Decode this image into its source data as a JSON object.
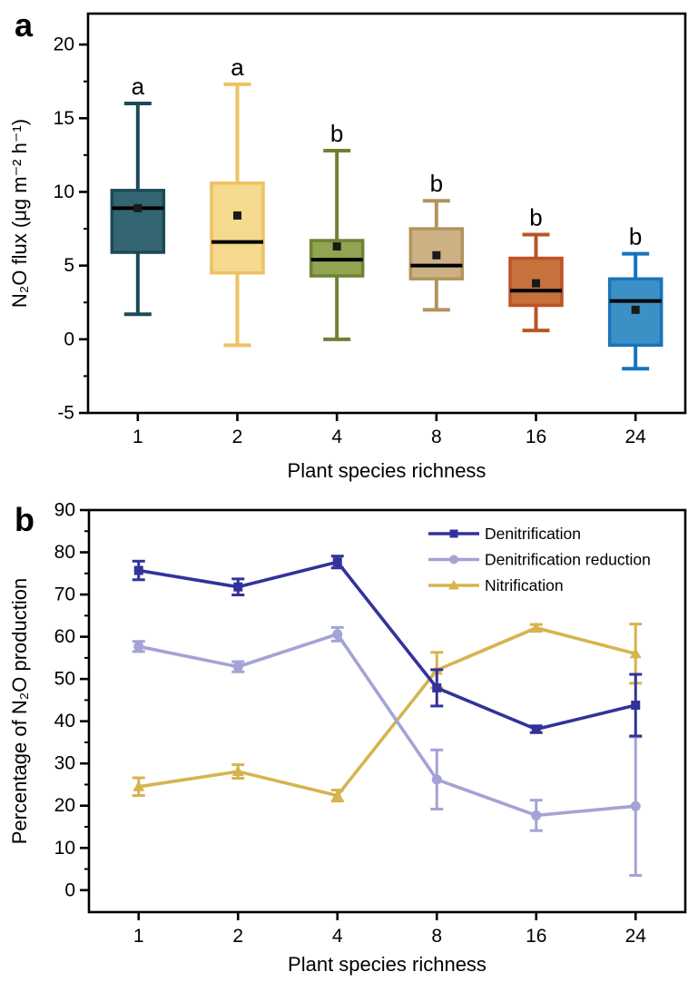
{
  "chart_data": [
    {
      "id": "a",
      "type": "box",
      "panel_label": "a",
      "xlabel": "Plant species richness",
      "ylabel": "N₂O flux (μg m⁻² h⁻¹)",
      "categories": [
        "1",
        "2",
        "4",
        "8",
        "16",
        "24"
      ],
      "ylim": [
        -5,
        22.1
      ],
      "yticks": [
        -5,
        0,
        5,
        10,
        15,
        20
      ],
      "minor_tick_step": 2.5,
      "grid": false,
      "boxes": [
        {
          "category": "1",
          "whisker_low": 1.7,
          "q1": 5.9,
          "median": 8.9,
          "mean": 8.9,
          "q3": 10.1,
          "whisker_high": 16.0,
          "sig_letter": "a",
          "fill": "#336672",
          "stroke": "#1D4A57"
        },
        {
          "category": "2",
          "whisker_low": -0.4,
          "q1": 4.5,
          "median": 6.6,
          "mean": 8.4,
          "q3": 10.6,
          "whisker_high": 17.3,
          "sig_letter": "a",
          "fill": "#F4D98E",
          "stroke": "#EDC25F"
        },
        {
          "category": "4",
          "whisker_low": 0.0,
          "q1": 4.3,
          "median": 5.4,
          "mean": 6.3,
          "q3": 6.7,
          "whisker_high": 12.8,
          "sig_letter": "b",
          "fill": "#90A452",
          "stroke": "#6F8134"
        },
        {
          "category": "8",
          "whisker_low": 2.0,
          "q1": 4.1,
          "median": 5.0,
          "mean": 5.7,
          "q3": 7.5,
          "whisker_high": 9.4,
          "sig_letter": "b",
          "fill": "#CCB184",
          "stroke": "#B2945D"
        },
        {
          "category": "16",
          "whisker_low": 0.6,
          "q1": 2.3,
          "median": 3.3,
          "mean": 3.8,
          "q3": 5.5,
          "whisker_high": 7.1,
          "sig_letter": "b",
          "fill": "#C7713D",
          "stroke": "#BC5327"
        },
        {
          "category": "24",
          "whisker_low": -2.0,
          "q1": -0.4,
          "median": 2.6,
          "mean": 2.0,
          "q3": 4.1,
          "whisker_high": 5.8,
          "sig_letter": "b",
          "fill": "#3B90C5",
          "stroke": "#1874BC"
        }
      ]
    },
    {
      "id": "b",
      "type": "line",
      "panel_label": "b",
      "xlabel": "Plant species richness",
      "ylabel": "Percentage of N₂O production",
      "categories": [
        "1",
        "2",
        "4",
        "8",
        "16",
        "24"
      ],
      "ylim": [
        -5.2,
        90
      ],
      "yticks": [
        0,
        10,
        20,
        30,
        40,
        50,
        60,
        70,
        80,
        90
      ],
      "minor_tick_step": 5,
      "grid": false,
      "legend_position": "inside-top-right",
      "series": [
        {
          "name": "Denitrification",
          "marker": "square",
          "color": "#32329B",
          "values": [
            75.7,
            71.8,
            77.7,
            47.9,
            38.1,
            43.8
          ],
          "errors": [
            2.2,
            1.9,
            1.4,
            4.3,
            0.8,
            7.3
          ]
        },
        {
          "name": "Denitrification reduction",
          "marker": "circle",
          "color": "#A3A3D6",
          "values": [
            57.7,
            52.9,
            60.6,
            26.2,
            17.7,
            19.9
          ],
          "errors": [
            1.2,
            1.2,
            1.6,
            7.0,
            3.6,
            16.4
          ]
        },
        {
          "name": "Nitrification",
          "marker": "triangle",
          "color": "#D6B44E",
          "values": [
            24.5,
            28.1,
            22.4,
            52.1,
            62.1,
            56.0
          ],
          "errors": [
            2.1,
            1.6,
            1.3,
            4.2,
            0.8,
            7.0
          ]
        }
      ]
    }
  ]
}
